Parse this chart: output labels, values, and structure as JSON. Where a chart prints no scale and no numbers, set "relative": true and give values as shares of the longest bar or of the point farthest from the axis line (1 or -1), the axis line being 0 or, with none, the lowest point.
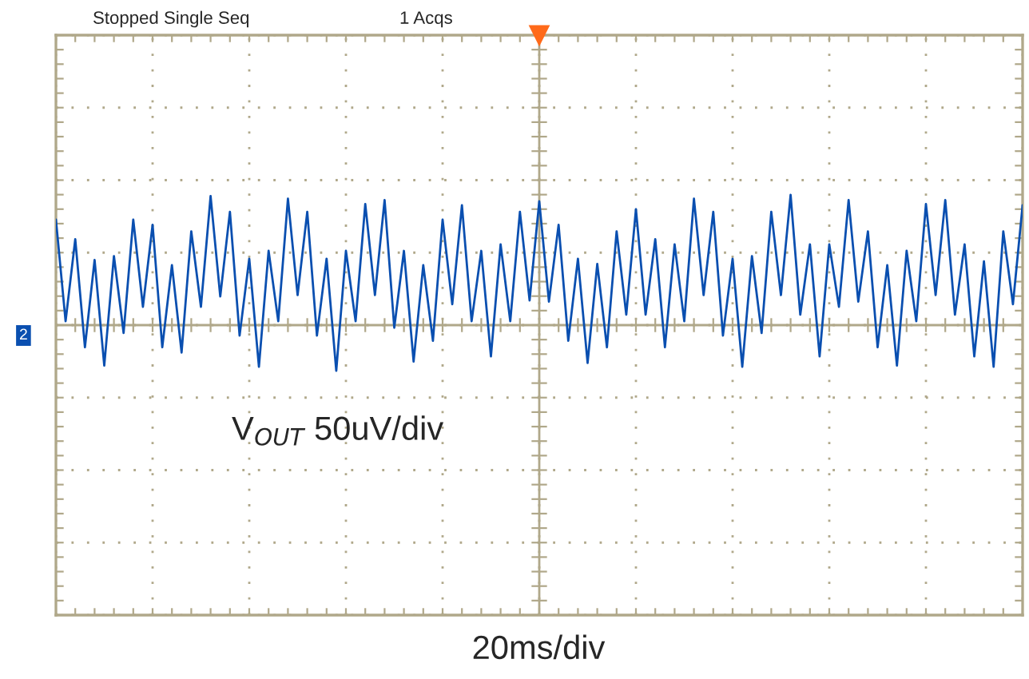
{
  "chart_data": {
    "type": "line",
    "relative": true,
    "grid": true,
    "tick_labels": false,
    "annotations": [
      "Stopped Single Seq",
      "1 Acqs",
      "2",
      "V$_{OUT}$ 50uV/div",
      "20ms/div"
    ],
    "categories": [
      null,
      null,
      null,
      null,
      null,
      null,
      null,
      null,
      null,
      null,
      null,
      null,
      null,
      null,
      null,
      null,
      null,
      null,
      null,
      null,
      null,
      null,
      null,
      null,
      null,
      null,
      null,
      null,
      null,
      null,
      null,
      null,
      null,
      null,
      null,
      null,
      null,
      null,
      null,
      null,
      null,
      null,
      null,
      null,
      null,
      null,
      null,
      null,
      null,
      null,
      null,
      null,
      null,
      null,
      null,
      null,
      null,
      null,
      null,
      null,
      null,
      null,
      null,
      null,
      null,
      null,
      null,
      null,
      null,
      null,
      null,
      null,
      null,
      null,
      null,
      null,
      null,
      null,
      null,
      null,
      null,
      null,
      null,
      null,
      null,
      null,
      null,
      null,
      null,
      null,
      null,
      null,
      null,
      null,
      null,
      null,
      null,
      null,
      null,
      null,
      null
    ],
    "series": [
      {
        "color": "#0a4fb0",
        "values": [
          0.81,
          0.03,
          0.66,
          -0.17,
          0.5,
          -0.31,
          0.53,
          -0.06,
          0.81,
          0.14,
          0.77,
          -0.17,
          0.46,
          -0.21,
          0.72,
          0.14,
          0.99,
          0.22,
          0.87,
          -0.08,
          0.51,
          -0.32,
          0.57,
          0.03,
          0.97,
          0.23,
          0.87,
          -0.08,
          0.51,
          -0.35,
          0.57,
          0.03,
          0.93,
          0.23,
          0.96,
          -0.02,
          0.57,
          -0.28,
          0.46,
          -0.12,
          0.81,
          0.16,
          0.92,
          0.03,
          0.57,
          -0.24,
          0.62,
          0.03,
          0.87,
          0.19,
          0.95,
          0.18,
          0.77,
          -0.12,
          0.51,
          -0.29,
          0.47,
          -0.17,
          0.72,
          0.08,
          0.89,
          0.08,
          0.66,
          -0.17,
          0.62,
          0.03,
          0.97,
          0.23,
          0.87,
          -0.08,
          0.51,
          -0.32,
          0.53,
          -0.06,
          0.87,
          0.23,
          1.0,
          0.08,
          0.62,
          -0.24,
          0.62,
          0.14,
          0.96,
          0.18,
          0.72,
          -0.17,
          0.46,
          -0.31,
          0.57,
          0.03,
          0.93,
          0.23,
          0.96,
          0.08,
          0.62,
          -0.24,
          0.49,
          -0.32,
          0.72,
          0.16,
          0.92
        ]
      }
    ]
  }
}
